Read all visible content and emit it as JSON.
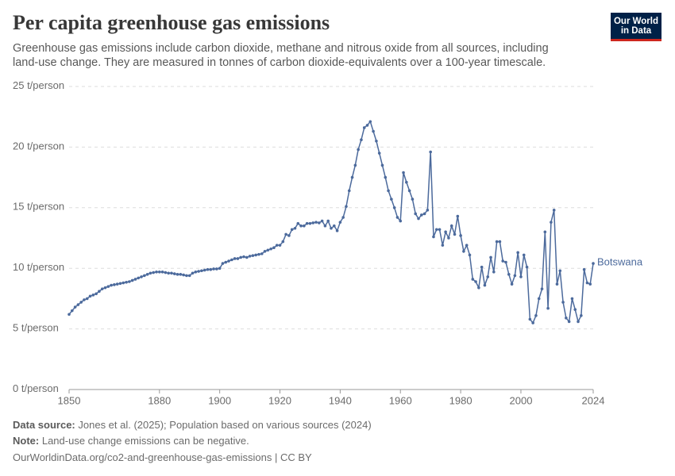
{
  "chart_data": {
    "type": "line",
    "title": "Per capita greenhouse gas emissions",
    "subtitle": "Greenhouse gas emissions include carbon dioxide, methane and nitrous oxide from all sources, including land-use change. They are measured in tonnes of carbon dioxide-equivalents over a 100-year timescale.",
    "logo": [
      "Our World",
      "in Data"
    ],
    "source_label": "Data source:",
    "source": "Jones et al. (2025); Population based on various sources (2024)",
    "note_label": "Note:",
    "note": "Land-use change emissions can be negative.",
    "url": "OurWorldinData.org/co2-and-greenhouse-gas-emissions | CC BY",
    "grid": true,
    "xlim": [
      1850,
      2024
    ],
    "xticks": [
      1850,
      1880,
      1900,
      1920,
      1940,
      1960,
      1980,
      2000,
      2024
    ],
    "ylim": [
      0,
      25
    ],
    "yticks": [
      {
        "value": 0,
        "label": "0 t/person"
      },
      {
        "value": 5,
        "label": "5 t/person"
      },
      {
        "value": 10,
        "label": "10 t/person"
      },
      {
        "value": 15,
        "label": "15 t/person"
      },
      {
        "value": 20,
        "label": "20 t/person"
      },
      {
        "value": 25,
        "label": "25 t/person"
      }
    ],
    "x": [
      1850,
      1851,
      1852,
      1853,
      1854,
      1855,
      1856,
      1857,
      1858,
      1859,
      1860,
      1861,
      1862,
      1863,
      1864,
      1865,
      1866,
      1867,
      1868,
      1869,
      1870,
      1871,
      1872,
      1873,
      1874,
      1875,
      1876,
      1877,
      1878,
      1879,
      1880,
      1881,
      1882,
      1883,
      1884,
      1885,
      1886,
      1887,
      1888,
      1889,
      1890,
      1891,
      1892,
      1893,
      1894,
      1895,
      1896,
      1897,
      1898,
      1899,
      1900,
      1901,
      1902,
      1903,
      1904,
      1905,
      1906,
      1907,
      1908,
      1909,
      1910,
      1911,
      1912,
      1913,
      1914,
      1915,
      1916,
      1917,
      1918,
      1919,
      1920,
      1921,
      1922,
      1923,
      1924,
      1925,
      1926,
      1927,
      1928,
      1929,
      1930,
      1931,
      1932,
      1933,
      1934,
      1935,
      1936,
      1937,
      1938,
      1939,
      1940,
      1941,
      1942,
      1943,
      1944,
      1945,
      1946,
      1947,
      1948,
      1949,
      1950,
      1951,
      1952,
      1953,
      1954,
      1955,
      1956,
      1957,
      1958,
      1959,
      1960,
      1961,
      1962,
      1963,
      1964,
      1965,
      1966,
      1967,
      1968,
      1969,
      1970,
      1971,
      1972,
      1973,
      1974,
      1975,
      1976,
      1977,
      1978,
      1979,
      1980,
      1981,
      1982,
      1983,
      1984,
      1985,
      1986,
      1987,
      1988,
      1989,
      1990,
      1991,
      1992,
      1993,
      1994,
      1995,
      1996,
      1997,
      1998,
      1999,
      2000,
      2001,
      2002,
      2003,
      2004,
      2005,
      2006,
      2007,
      2008,
      2009,
      2010,
      2011,
      2012,
      2013,
      2014,
      2015,
      2016,
      2017,
      2018,
      2019,
      2020,
      2021,
      2022,
      2023,
      2024
    ],
    "series": [
      {
        "name": "Botswana",
        "color": "#4c6a9c",
        "values": [
          6.2,
          6.5,
          6.8,
          7.0,
          7.2,
          7.4,
          7.5,
          7.7,
          7.8,
          7.9,
          8.1,
          8.3,
          8.4,
          8.5,
          8.6,
          8.65,
          8.7,
          8.75,
          8.8,
          8.85,
          8.9,
          9.0,
          9.1,
          9.2,
          9.3,
          9.4,
          9.5,
          9.6,
          9.65,
          9.7,
          9.7,
          9.7,
          9.65,
          9.6,
          9.6,
          9.55,
          9.5,
          9.5,
          9.45,
          9.4,
          9.4,
          9.6,
          9.7,
          9.75,
          9.8,
          9.85,
          9.9,
          9.9,
          9.95,
          9.95,
          10.0,
          10.4,
          10.5,
          10.6,
          10.7,
          10.8,
          10.8,
          10.9,
          10.95,
          10.9,
          11.0,
          11.05,
          11.1,
          11.15,
          11.2,
          11.4,
          11.5,
          11.6,
          11.7,
          11.9,
          11.9,
          12.2,
          12.8,
          12.7,
          13.2,
          13.3,
          13.7,
          13.5,
          13.5,
          13.7,
          13.7,
          13.75,
          13.8,
          13.75,
          13.9,
          13.5,
          13.9,
          13.3,
          13.5,
          13.1,
          13.8,
          14.2,
          15.1,
          16.4,
          17.5,
          18.5,
          19.8,
          20.6,
          21.6,
          21.8,
          22.1,
          21.3,
          20.5,
          19.5,
          18.5,
          17.5,
          16.4,
          15.7,
          15.0,
          14.2,
          13.9,
          17.9,
          17.1,
          16.4,
          15.7,
          14.5,
          14.1,
          14.4,
          14.5,
          14.8,
          19.6,
          12.6,
          13.2,
          13.2,
          11.9,
          13.0,
          12.5,
          13.5,
          12.8,
          14.3,
          12.7,
          11.4,
          11.9,
          11.1,
          9.1,
          8.9,
          8.4,
          10.1,
          8.6,
          9.3,
          10.9,
          9.7,
          12.2,
          12.2,
          10.6,
          10.5,
          9.5,
          8.7,
          9.4,
          11.3,
          9.3,
          11.1,
          10.1,
          5.8,
          5.5,
          6.1,
          7.5,
          8.3,
          13.0,
          6.7,
          13.8,
          14.8,
          8.7,
          9.8,
          7.2,
          5.9,
          5.6,
          7.5,
          6.6,
          5.6,
          6.1,
          9.9,
          8.8,
          8.7,
          10.4
        ]
      }
    ]
  }
}
